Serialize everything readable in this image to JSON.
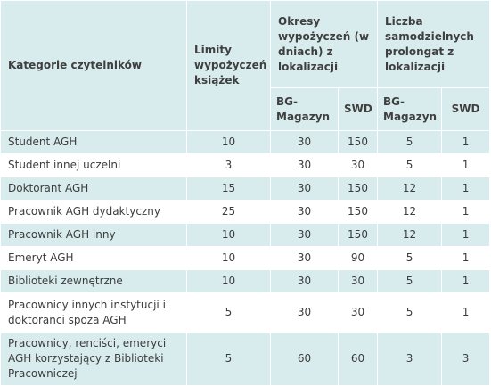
{
  "header": {
    "category": "Kategorie czytelników",
    "limits": "Limity wypożyczeń książek",
    "periods": "Okresy wypożyczeń (w dniach) z lokalizacji",
    "extensions": "Liczba samodzielnych prolongat z lokalizacji",
    "sub_bg": "BG-Magazyn",
    "sub_swd": "SWD"
  },
  "rows": [
    {
      "category": "Student AGH",
      "limit": "10",
      "period_bg": "30",
      "period_swd": "150",
      "ext_bg": "5",
      "ext_swd": "1"
    },
    {
      "category": "Student innej uczelni",
      "limit": "3",
      "period_bg": "30",
      "period_swd": "30",
      "ext_bg": "5",
      "ext_swd": "1"
    },
    {
      "category": "Doktorant AGH",
      "limit": "15",
      "period_bg": "30",
      "period_swd": "150",
      "ext_bg": "12",
      "ext_swd": "1"
    },
    {
      "category": "Pracownik AGH dydaktyczny",
      "limit": "25",
      "period_bg": "30",
      "period_swd": "150",
      "ext_bg": "12",
      "ext_swd": "1"
    },
    {
      "category": "Pracownik AGH inny",
      "limit": "10",
      "period_bg": "30",
      "period_swd": "150",
      "ext_bg": "12",
      "ext_swd": "1"
    },
    {
      "category": "Emeryt AGH",
      "limit": "10",
      "period_bg": "30",
      "period_swd": "90",
      "ext_bg": "5",
      "ext_swd": "1"
    },
    {
      "category": "Biblioteki zewnętrzne",
      "limit": "10",
      "period_bg": "30",
      "period_swd": "30",
      "ext_bg": "5",
      "ext_swd": "1"
    },
    {
      "category": "Pracownicy innych instytucji i doktoranci spoza AGH",
      "limit": "5",
      "period_bg": "30",
      "period_swd": "30",
      "ext_bg": "5",
      "ext_swd": "1"
    },
    {
      "category": "Pracownicy, renciści, emeryci AGH korzystający z Biblioteki Pracowniczej",
      "limit": "5",
      "period_bg": "60",
      "period_swd": "60",
      "ext_bg": "3",
      "ext_swd": "3"
    }
  ],
  "colors": {
    "band": "#d8ecee",
    "text": "#3c3c3c"
  }
}
